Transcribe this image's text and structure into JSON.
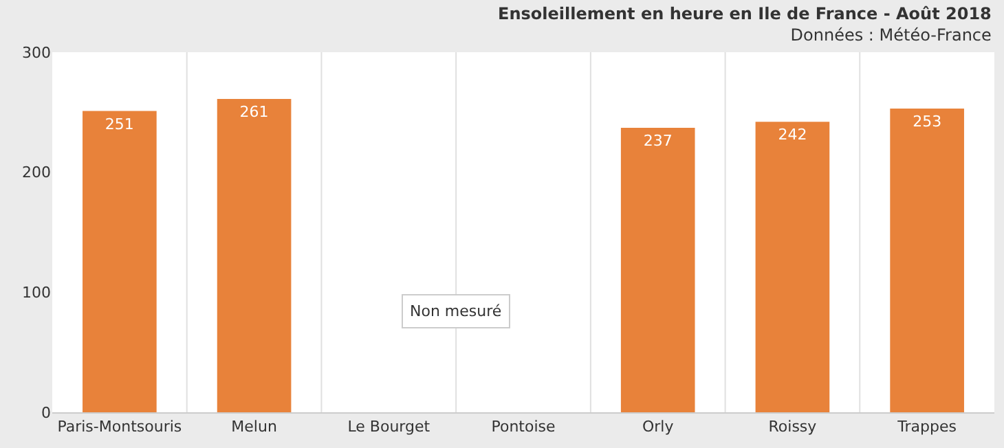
{
  "chart_data": {
    "type": "bar",
    "title": "Ensoleillement en heure en Ile de France - Août 2018",
    "subtitle": "Données : Météo-France",
    "categories": [
      "Paris-Montsouris",
      "Melun",
      "Le Bourget",
      "Pontoise",
      "Orly",
      "Roissy",
      "Trappes"
    ],
    "values": [
      251,
      261,
      null,
      null,
      237,
      242,
      253
    ],
    "color": "#e8823a",
    "ylim": [
      0,
      300
    ],
    "yticks": [
      0,
      100,
      200,
      300
    ],
    "grid": "x",
    "data_labels": true,
    "annotations": [
      "Non mesuré"
    ]
  }
}
